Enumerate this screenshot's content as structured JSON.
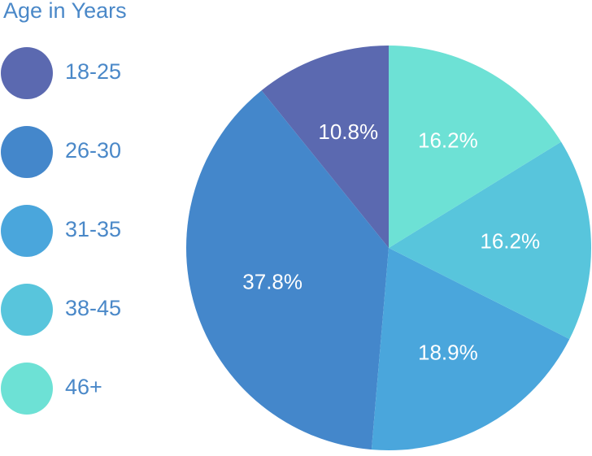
{
  "chart_data": {
    "type": "pie",
    "title": "Age in Years",
    "categories": [
      "18-25",
      "26-30",
      "31-35",
      "38-45",
      "46+"
    ],
    "values": [
      10.8,
      37.8,
      18.9,
      16.2,
      16.2
    ],
    "value_labels": [
      "10.8%",
      "37.8%",
      "18.9%",
      "16.2%",
      "16.2%"
    ],
    "colors": [
      "#5b69b0",
      "#4487cb",
      "#4aa6dc",
      "#58c5dc",
      "#6de1d5"
    ]
  }
}
